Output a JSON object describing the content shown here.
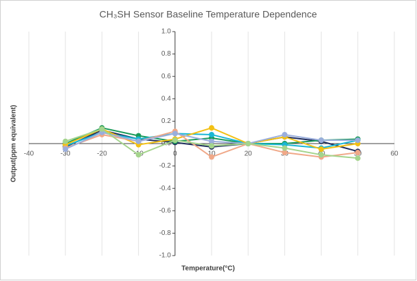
{
  "chart_data": {
    "type": "line",
    "title": "CH₃SH Sensor Baseline Temperature Dependence",
    "x_label": "Temperature(°C)",
    "y_label": "Output(ppm equivalent)",
    "x": [
      -30,
      -20,
      -10,
      0,
      10,
      20,
      30,
      40,
      50
    ],
    "xlim": [
      -40,
      60
    ],
    "xticks": [
      -40,
      -30,
      -20,
      -10,
      0,
      10,
      20,
      30,
      40,
      50,
      60
    ],
    "ylim": [
      -1,
      1
    ],
    "yticks": [
      {
        "value": 1,
        "label": "1.0"
      },
      0.8,
      0.6,
      0.4,
      0.2,
      {
        "value": 0,
        "label": "0.0"
      },
      -0.2,
      -0.4,
      -0.6,
      -0.8,
      {
        "value": -1,
        "label": "-1.0"
      }
    ],
    "xgrid": true,
    "series": [
      {
        "color": "#1f2d5c",
        "values": [
          -0.03,
          0.12,
          0.04,
          0.01,
          -0.03,
          0,
          0.06,
          0.02,
          -0.07
        ]
      },
      {
        "color": "#1a9a5a",
        "values": [
          0,
          0.14,
          0.07,
          0.02,
          0.05,
          0,
          0,
          0.03,
          0.04
        ]
      },
      {
        "color": "#19b6d4",
        "values": [
          -0.02,
          0.1,
          0.04,
          0.09,
          0.08,
          0,
          -0.01,
          -0.04,
          0.03
        ]
      },
      {
        "color": "#f2c014",
        "values": [
          -0.01,
          0.13,
          -0.01,
          0.04,
          0.14,
          0,
          0.06,
          -0.05,
          0
        ]
      },
      {
        "color": "#f0a888",
        "values": [
          -0.04,
          0.08,
          0.02,
          0.11,
          -0.12,
          0,
          -0.08,
          -0.12,
          -0.08
        ]
      },
      {
        "color": "#9aaedc",
        "values": [
          -0.05,
          0.1,
          0.02,
          0.09,
          0.02,
          0,
          0.08,
          0.03,
          0.03
        ]
      },
      {
        "color": "#a4d48c",
        "values": [
          0.02,
          0.13,
          -0.1,
          0.03,
          -0.02,
          0,
          -0.04,
          -0.1,
          -0.13
        ]
      }
    ]
  }
}
